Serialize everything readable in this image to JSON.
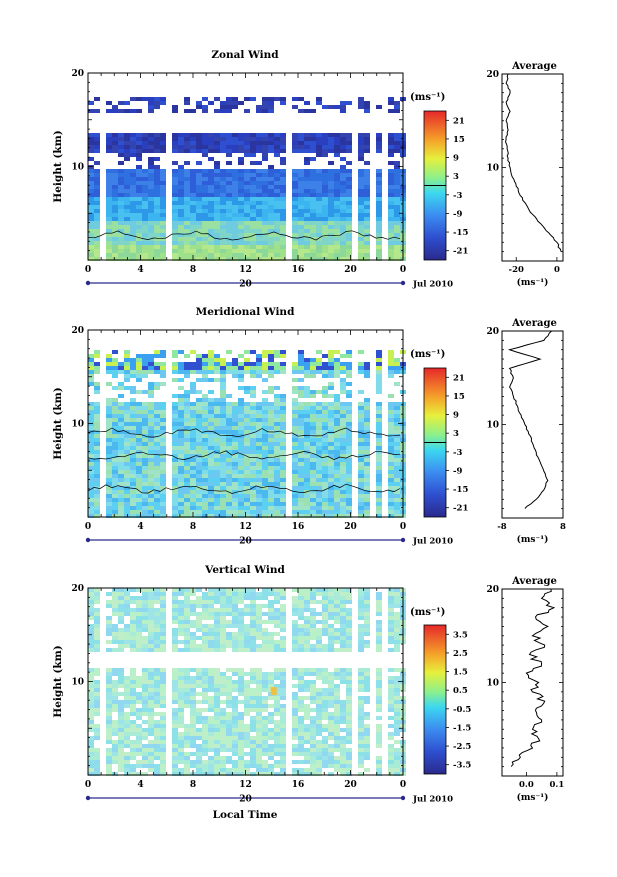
{
  "chart_data": [
    {
      "type": "heatmap",
      "title": "Zonal Wind",
      "ylabel": "Height (km)",
      "ylim": [
        0,
        20
      ],
      "yticks": [
        "10",
        "20"
      ],
      "xticks": [
        "0",
        "4",
        "8",
        "12",
        "16",
        "20",
        "0"
      ],
      "date_marker": "20",
      "date_label": "Jul 2010",
      "colorbar": {
        "unit": "(ms⁻¹)",
        "ticks": [
          "21",
          "15",
          "9",
          "3",
          "-3",
          "-9",
          "-15",
          "-21"
        ],
        "range": [
          -24,
          24
        ]
      },
      "profile": {
        "title": "Average",
        "xlabel": "(ms⁻¹)",
        "xticks": [
          "-20",
          "0"
        ],
        "xlim": [
          -27,
          3
        ],
        "ylim": [
          0,
          20
        ],
        "yticks": [
          "10",
          "20"
        ],
        "points": [
          [
            2,
            1
          ],
          [
            0,
            2
          ],
          [
            -4,
            3
          ],
          [
            -8,
            4
          ],
          [
            -12,
            5
          ],
          [
            -15,
            6
          ],
          [
            -18,
            7
          ],
          [
            -20,
            8
          ],
          [
            -22,
            9
          ],
          [
            -23,
            10
          ],
          [
            -24,
            11
          ],
          [
            -24.5,
            12
          ],
          [
            -25,
            13
          ],
          [
            -24,
            14
          ],
          [
            -25,
            15
          ],
          [
            -23,
            16
          ],
          [
            -25,
            17
          ],
          [
            -23,
            18
          ],
          [
            -25,
            19
          ],
          [
            -24,
            20
          ]
        ]
      },
      "note": "blue-purple westward winds (about -15 to -21) from 10 to 17 km, light blue/green near 2-4 km"
    },
    {
      "type": "heatmap",
      "title": "Meridional Wind",
      "ylabel": "Height (km)",
      "ylim": [
        0,
        20
      ],
      "yticks": [
        "10",
        "20"
      ],
      "xticks": [
        "0",
        "4",
        "8",
        "12",
        "16",
        "20",
        "0"
      ],
      "date_marker": "20",
      "date_label": "Jul 2010",
      "colorbar": {
        "unit": "(ms⁻¹)",
        "ticks": [
          "21",
          "15",
          "9",
          "3",
          "-3",
          "-9",
          "-15",
          "-21"
        ],
        "range": [
          -24,
          24
        ]
      },
      "profile": {
        "title": "Average",
        "xlabel": "(ms⁻¹)",
        "xticks": [
          "-8",
          "8"
        ],
        "xlim": [
          -8,
          8
        ],
        "ylim": [
          0,
          20
        ],
        "yticks": [
          "10",
          "20"
        ],
        "points": [
          [
            -2,
            1
          ],
          [
            1,
            2
          ],
          [
            3,
            3
          ],
          [
            4,
            4
          ],
          [
            3,
            5
          ],
          [
            2,
            6
          ],
          [
            1,
            7
          ],
          [
            0,
            8
          ],
          [
            -1,
            9
          ],
          [
            -2,
            10
          ],
          [
            -3,
            11
          ],
          [
            -4,
            12
          ],
          [
            -5,
            13
          ],
          [
            -6,
            14
          ],
          [
            -5,
            15
          ],
          [
            -6,
            16
          ],
          [
            2,
            17
          ],
          [
            -6,
            18
          ],
          [
            3,
            19
          ],
          [
            5,
            20
          ]
        ]
      },
      "note": "weak meridional winds, light blue/cyan, green-yellow band near 17 km"
    },
    {
      "type": "heatmap",
      "title": "Vertical Wind",
      "ylabel": "Height (km)",
      "xlabel": "Local Time",
      "ylim": [
        0,
        20
      ],
      "yticks": [
        "10",
        "20"
      ],
      "xticks": [
        "0",
        "4",
        "8",
        "12",
        "16",
        "20",
        "0"
      ],
      "date_marker": "20",
      "date_label": "Jul 2010",
      "colorbar": {
        "unit": "(ms⁻¹)",
        "ticks": [
          "3.5",
          "2.5",
          "1.5",
          "0.5",
          "-0.5",
          "-1.5",
          "-2.5",
          "-3.5"
        ],
        "range": [
          -4,
          4
        ]
      },
      "profile": {
        "title": "Average",
        "xlabel": "(ms⁻¹)",
        "xticks": [
          "0.0",
          "0.1"
        ],
        "xlim": [
          -0.08,
          0.12
        ],
        "ylim": [
          0,
          20
        ],
        "yticks": [
          "10",
          "20"
        ],
        "points": [
          [
            -0.05,
            1
          ],
          [
            -0.02,
            2
          ],
          [
            0.02,
            3
          ],
          [
            0.04,
            4
          ],
          [
            0.02,
            5
          ],
          [
            0.05,
            6
          ],
          [
            0.03,
            7
          ],
          [
            0.06,
            8
          ],
          [
            0.02,
            9
          ],
          [
            0.04,
            10
          ],
          [
            0.0,
            11
          ],
          [
            0.05,
            12
          ],
          [
            0.01,
            13
          ],
          [
            0.06,
            14
          ],
          [
            0.02,
            15
          ],
          [
            0.07,
            16
          ],
          [
            0.03,
            17
          ],
          [
            0.09,
            18
          ],
          [
            0.05,
            19
          ],
          [
            0.08,
            20
          ]
        ]
      },
      "note": "mostly light cyan/green (near 0), small yellow-orange patch near 14 LT at 9 km"
    }
  ]
}
